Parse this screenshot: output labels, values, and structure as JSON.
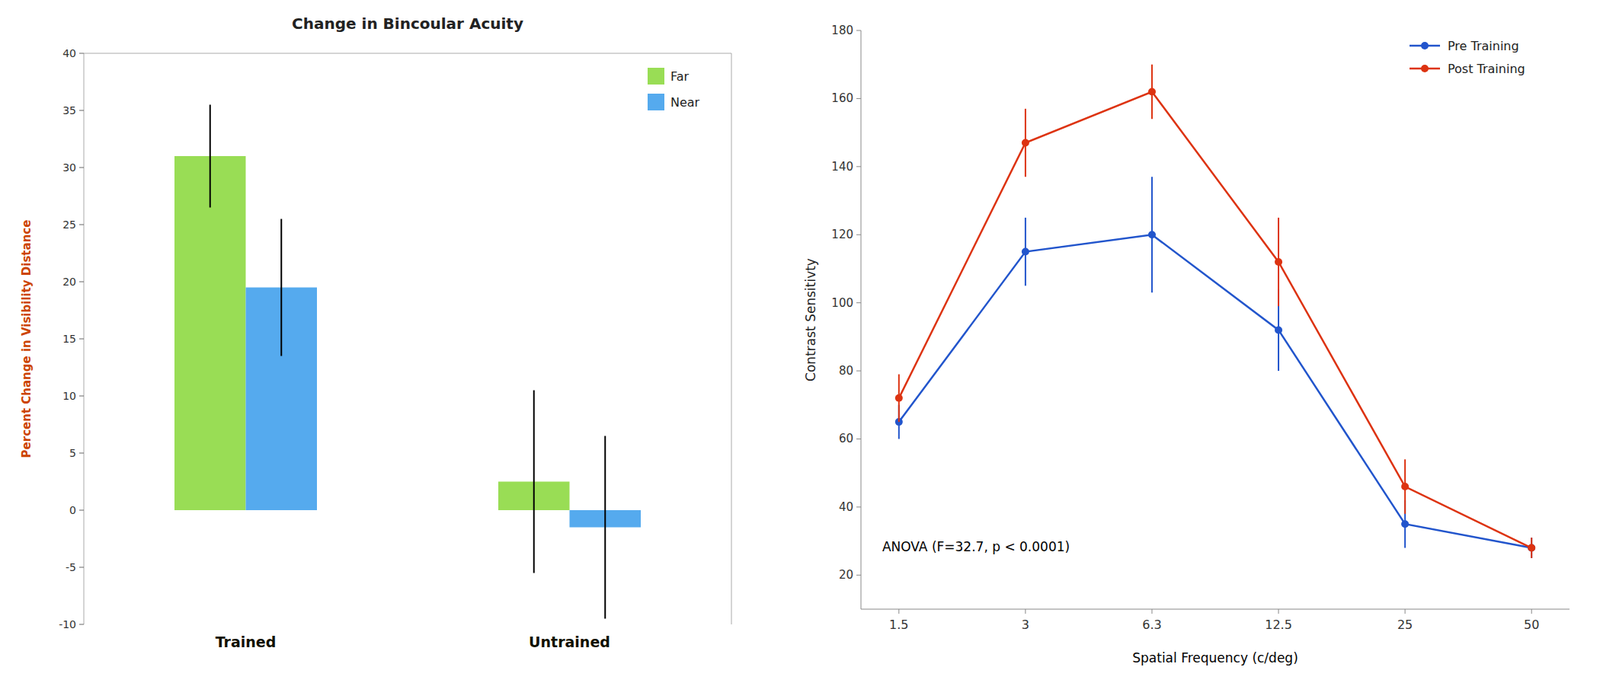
{
  "chart_data": [
    {
      "type": "bar",
      "title": "Change in Bincoular Acuity",
      "ylabel": "Percent Change in Visibility Distance",
      "categories": [
        "Trained",
        "Untrained"
      ],
      "series": [
        {
          "name": "Far",
          "color": "#99dd55",
          "values": [
            31,
            2.5
          ],
          "errors": [
            4.5,
            8
          ]
        },
        {
          "name": "Near",
          "color": "#55aaee",
          "values": [
            19.5,
            -1.5
          ],
          "errors": [
            6,
            8
          ]
        }
      ],
      "ylim": [
        -10,
        40
      ],
      "yticks": [
        -10,
        -5,
        0,
        5,
        10,
        15,
        20,
        25,
        30,
        35,
        40
      ],
      "grid": false,
      "legend": "upper right"
    },
    {
      "type": "line",
      "ylabel": "Contrast Sensitivty",
      "xlabel": "Spatial Frequency (c/deg)",
      "annotation": "ANOVA (F=32.7, p < 0.0001)",
      "categories": [
        "1.5",
        "3",
        "6.3",
        "12.5",
        "25",
        "50"
      ],
      "series": [
        {
          "name": "Pre Training",
          "color": "#2255cc",
          "marker": "circle",
          "values": [
            65,
            115,
            120,
            92,
            35,
            28
          ],
          "errors": [
            5,
            10,
            17,
            12,
            7,
            3
          ]
        },
        {
          "name": "Post Training",
          "color": "#dd3311",
          "marker": "circle",
          "values": [
            72,
            147,
            162,
            112,
            46,
            28
          ],
          "errors": [
            7,
            10,
            8,
            13,
            8,
            3
          ]
        }
      ],
      "ylim": [
        10,
        180
      ],
      "yticks": [
        20,
        40,
        60,
        80,
        100,
        120,
        140,
        160,
        180
      ],
      "grid": false,
      "legend": "upper right"
    }
  ]
}
